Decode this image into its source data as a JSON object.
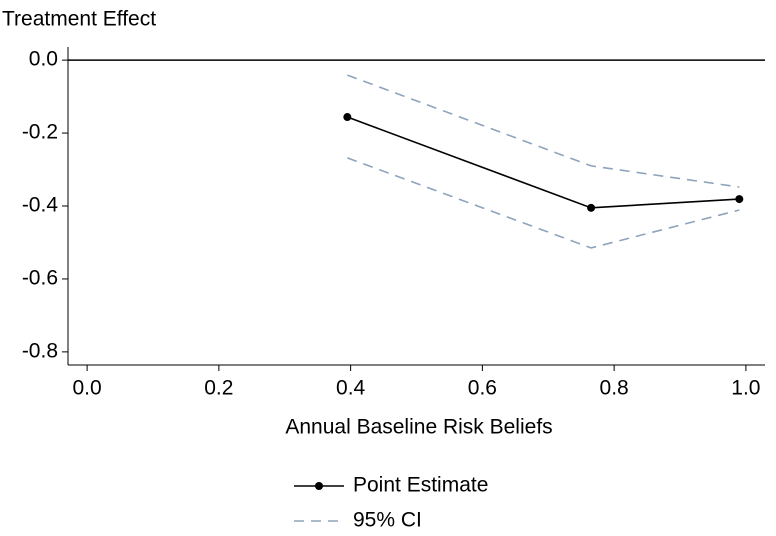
{
  "chart_data": {
    "type": "line",
    "y_label": "Treatment Effect",
    "x_label": "Annual Baseline Risk Beliefs",
    "x": [
      0.395,
      0.765,
      0.99
    ],
    "series": [
      {
        "name": "Point Estimate",
        "color": "#000000",
        "values": [
          -0.156,
          -0.405,
          -0.381
        ]
      },
      {
        "name": "95% CI",
        "color": "#8ea3bc",
        "upper": [
          -0.041,
          -0.29,
          -0.348
        ],
        "lower": [
          -0.268,
          -0.515,
          -0.411
        ]
      }
    ],
    "hline": 0,
    "xlim": [
      -0.029,
      1.029
    ],
    "ylim": [
      -0.836,
      0.036
    ],
    "xticks": [
      {
        "value": 0,
        "label": "0.0"
      },
      0.2,
      0.4,
      0.6,
      0.8,
      {
        "value": 1,
        "label": "1.0"
      }
    ],
    "yticks": [
      {
        "value": 0,
        "label": "0.0"
      },
      -0.2,
      -0.4,
      -0.6,
      -0.8
    ]
  }
}
